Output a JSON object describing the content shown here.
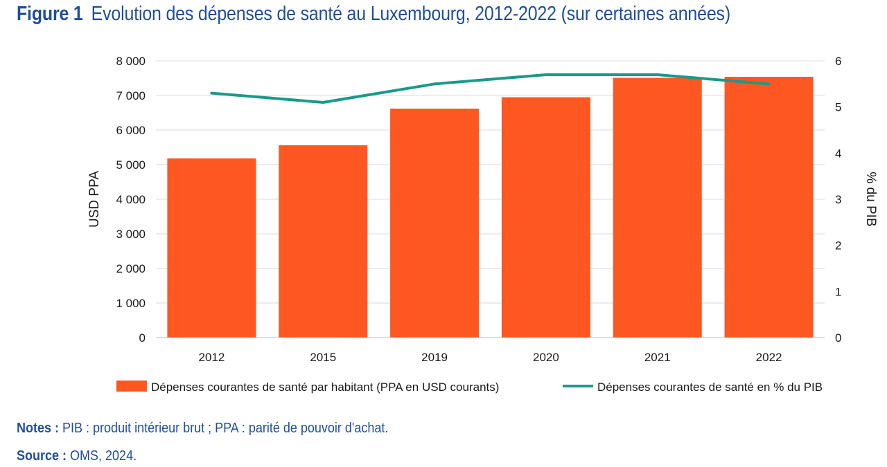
{
  "figure": {
    "number": "Figure 1",
    "title": "Evolution des dépenses de santé au Luxembourg, 2012-2022 (sur certaines années)"
  },
  "notes": {
    "label": "Notes :",
    "text": "PIB : produit intérieur brut ; PPA : parité de pouvoir d'achat."
  },
  "source": {
    "label": "Source :",
    "text": "OMS, 2024."
  },
  "colors": {
    "bar": "#ff5722",
    "line": "#1a9a8a",
    "title": "#1f4e9a",
    "axis_text": "#1a1a1a",
    "grid": "#d9d9d9"
  },
  "chart_data": {
    "type": "bar",
    "categories": [
      "2012",
      "2015",
      "2019",
      "2020",
      "2021",
      "2022"
    ],
    "series": [
      {
        "name": "Dépenses courantes de santé par habitant (PPA en USD courants)",
        "type": "bar",
        "axis": "left",
        "values": [
          5180,
          5560,
          6620,
          6950,
          7510,
          7540
        ]
      },
      {
        "name": "Dépenses courantes de santé en % du PIB",
        "type": "line",
        "axis": "right",
        "values": [
          5.3,
          5.1,
          5.5,
          5.7,
          5.7,
          5.5
        ]
      }
    ],
    "ylabel": "USD PPA",
    "y2label": "% du PIB",
    "ylim": [
      0,
      8000
    ],
    "y2lim": [
      0,
      6
    ],
    "yticks": [
      "0",
      "1 000",
      "2 000",
      "3 000",
      "4 000",
      "5 000",
      "6 000",
      "7 000",
      "8 000"
    ],
    "y2ticks": [
      "0",
      "1",
      "2",
      "3",
      "4",
      "5",
      "6"
    ],
    "grid": true,
    "legend": "bottom"
  }
}
